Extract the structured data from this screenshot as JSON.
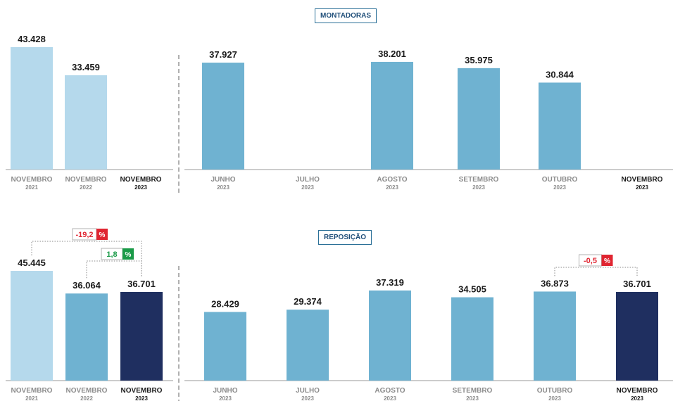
{
  "titles": {
    "montadoras": "MONTADORAS",
    "reposicao": "REPOSIÇÃO"
  },
  "colors": {
    "light": "#b5d9ec",
    "mid": "#6fb2d1",
    "dark": "#1f2f60",
    "negative": "#e02531",
    "positive": "#1a9a48",
    "label_gray": "#8c8c8c",
    "label_dark": "#1a1a1a"
  },
  "chart_data": [
    {
      "id": "montadoras_yearly",
      "type": "bar",
      "categories": [
        [
          "NOVEMBRO",
          "2021"
        ],
        [
          "NOVEMBRO",
          "2022"
        ],
        [
          "NOVEMBRO",
          "2023"
        ]
      ],
      "values": [
        43428,
        33459,
        null
      ],
      "value_labels": [
        "43.428",
        "33.459",
        ""
      ],
      "bar_colors": [
        "light",
        "light",
        "light"
      ],
      "ylim": [
        0,
        46000
      ]
    },
    {
      "id": "montadoras_monthly",
      "type": "bar",
      "title": "MONTADORAS",
      "categories": [
        [
          "JUNHO",
          "2023"
        ],
        [
          "JULHO",
          "2023"
        ],
        [
          "AGOSTO",
          "2023"
        ],
        [
          "SETEMBRO",
          "2023"
        ],
        [
          "OUTUBRO",
          "2023"
        ],
        [
          "NOVEMBRO",
          "2023"
        ]
      ],
      "values": [
        37927,
        null,
        38201,
        35975,
        30844,
        null
      ],
      "value_labels": [
        "37.927",
        "",
        "38.201",
        "35.975",
        "30.844",
        ""
      ],
      "bar_colors": [
        "mid",
        "mid",
        "mid",
        "mid",
        "mid",
        "mid"
      ],
      "ylim": [
        0,
        46000
      ]
    },
    {
      "id": "reposicao_yearly",
      "type": "bar",
      "categories": [
        [
          "NOVEMBRO",
          "2021"
        ],
        [
          "NOVEMBRO",
          "2022"
        ],
        [
          "NOVEMBRO",
          "2023"
        ]
      ],
      "values": [
        45445,
        36064,
        36701
      ],
      "value_labels": [
        "45.445",
        "36.064",
        "36.701"
      ],
      "bar_colors": [
        "light",
        "mid",
        "dark"
      ],
      "ylim": [
        0,
        50000
      ],
      "annotations": [
        {
          "from": 0,
          "to": 2,
          "text": "-19,2",
          "unit": "%",
          "sign": "negative"
        },
        {
          "from": 1,
          "to": 2,
          "text": "1,8",
          "unit": "%",
          "sign": "positive"
        }
      ]
    },
    {
      "id": "reposicao_monthly",
      "type": "bar",
      "title": "REPOSIÇÃO",
      "categories": [
        [
          "JUNHO",
          "2023"
        ],
        [
          "JULHO",
          "2023"
        ],
        [
          "AGOSTO",
          "2023"
        ],
        [
          "SETEMBRO",
          "2023"
        ],
        [
          "OUTUBRO",
          "2023"
        ],
        [
          "NOVEMBRO",
          "2023"
        ]
      ],
      "values": [
        28429,
        29374,
        37319,
        34505,
        36873,
        36701
      ],
      "value_labels": [
        "28.429",
        "29.374",
        "37.319",
        "34.505",
        "36.873",
        "36.701"
      ],
      "bar_colors": [
        "mid",
        "mid",
        "mid",
        "mid",
        "mid",
        "dark"
      ],
      "ylim": [
        0,
        50000
      ],
      "annotations": [
        {
          "from": 4,
          "to": 5,
          "text": "-0,5",
          "unit": "%",
          "sign": "negative"
        }
      ]
    }
  ]
}
